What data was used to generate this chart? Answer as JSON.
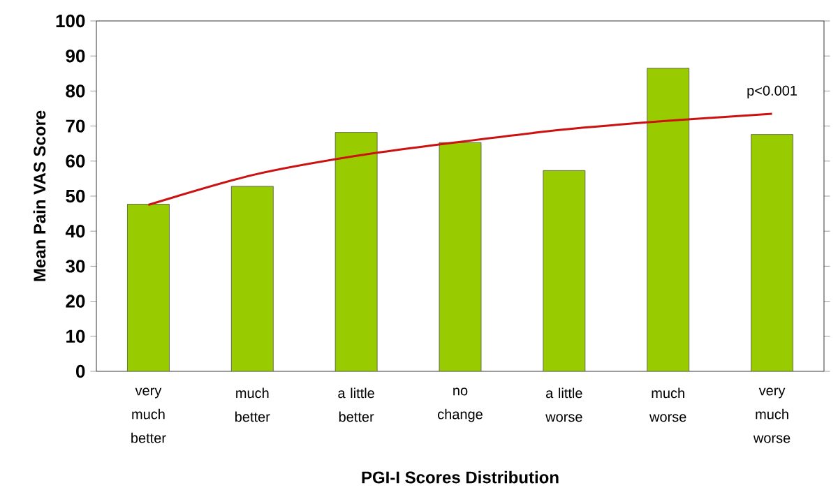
{
  "chart_data": {
    "type": "bar",
    "xlabel": "PGI-I Scores Distribution",
    "ylabel": "Mean Pain VAS Score",
    "categories": [
      "very much better",
      "much better",
      "a little better",
      "no change",
      "a little worse",
      "much worse",
      "very much worse"
    ],
    "ylim": [
      0,
      100
    ],
    "yticks": [
      0,
      10,
      20,
      30,
      40,
      50,
      60,
      70,
      80,
      90,
      100
    ],
    "grid": false,
    "series": [
      {
        "color": "#99cc00",
        "values": [
          47.7,
          52.8,
          68.2,
          65.3,
          57.3,
          86.5,
          67.6
        ]
      },
      {
        "type": "line",
        "color": "#cc1111",
        "values": [
          47.5,
          56,
          61.5,
          65.5,
          69,
          71.5,
          73.5
        ]
      }
    ],
    "annotations": [
      "p<0.001"
    ]
  }
}
